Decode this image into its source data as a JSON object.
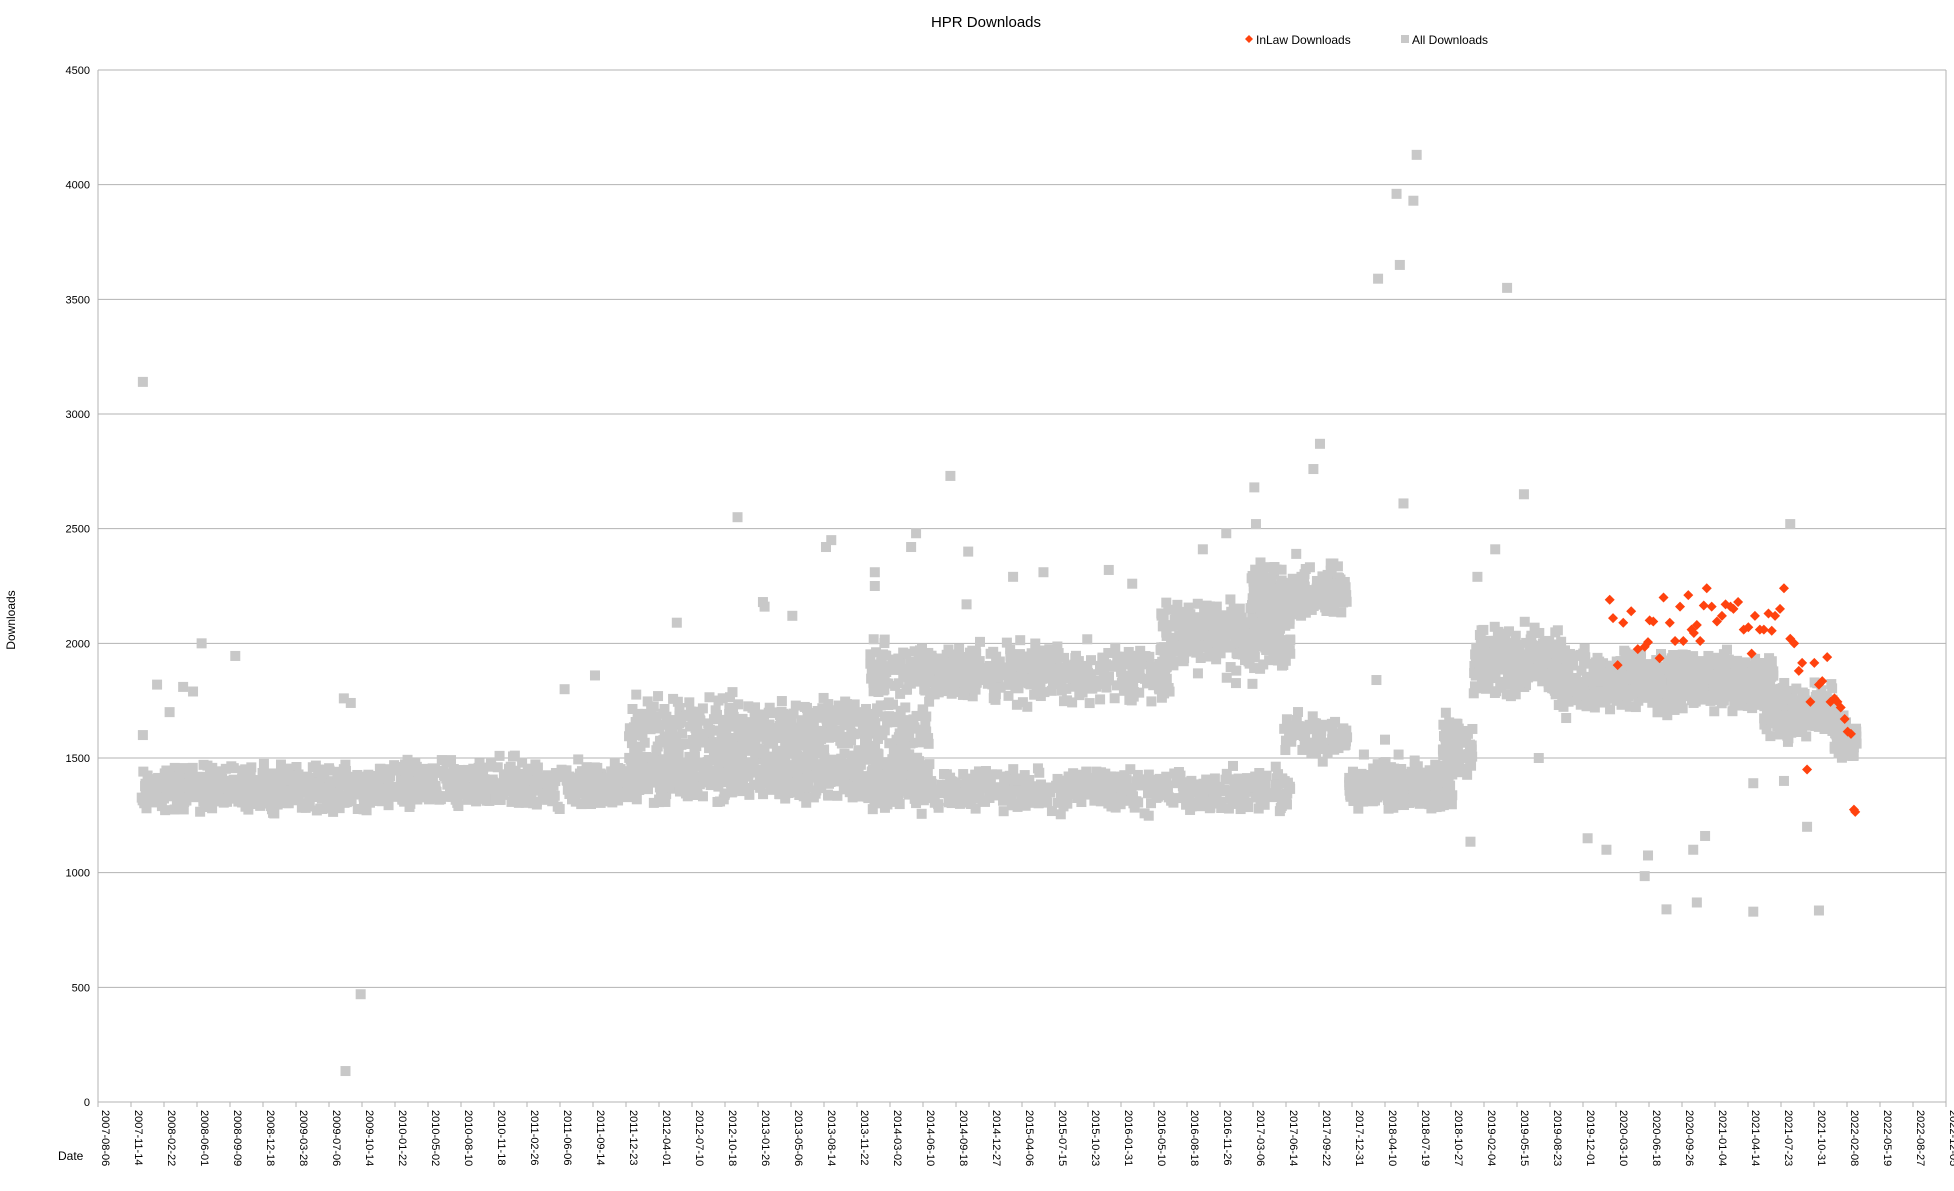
{
  "chart_data": {
    "type": "scatter",
    "title": "HPR Downloads",
    "xlabel": "Date",
    "ylabel": "Downloads",
    "xlim": [
      "2007-08-06",
      "2022-12-05"
    ],
    "ylim": [
      0,
      4500
    ],
    "y_ticks": [
      0,
      500,
      1000,
      1500,
      2000,
      2500,
      3000,
      3500,
      4000,
      4500
    ],
    "x_ticks": [
      "2007-08-06",
      "2007-11-14",
      "2008-02-22",
      "2008-06-01",
      "2008-09-09",
      "2008-12-18",
      "2009-03-28",
      "2009-07-06",
      "2009-10-14",
      "2010-01-22",
      "2010-05-02",
      "2010-08-10",
      "2010-11-18",
      "2011-02-26",
      "2011-06-06",
      "2011-09-14",
      "2011-12-23",
      "2012-04-01",
      "2012-07-10",
      "2012-10-18",
      "2013-01-26",
      "2013-05-06",
      "2013-08-14",
      "2013-11-22",
      "2014-03-02",
      "2014-06-10",
      "2014-09-18",
      "2014-12-27",
      "2015-04-06",
      "2015-07-15",
      "2015-10-23",
      "2016-01-31",
      "2016-05-10",
      "2016-08-18",
      "2016-11-26",
      "2017-03-06",
      "2017-06-14",
      "2017-09-22",
      "2017-12-31",
      "2018-04-10",
      "2018-07-19",
      "2018-10-27",
      "2019-02-04",
      "2019-05-15",
      "2019-08-23",
      "2019-12-01",
      "2020-03-10",
      "2020-06-18",
      "2020-09-26",
      "2021-01-04",
      "2021-04-14",
      "2021-07-23",
      "2021-10-31",
      "2022-02-08",
      "2022-05-19",
      "2022-08-27",
      "2022-12-05"
    ],
    "grid": "horizontal",
    "legend_position": "top-right",
    "series": [
      {
        "name": "InLaw Downloads",
        "color": "#ff420e",
        "marker": "diamond",
        "points": [
          [
            "2020-02-20",
            2190
          ],
          [
            "2020-03-01",
            2110
          ],
          [
            "2020-03-15",
            1905
          ],
          [
            "2020-04-01",
            2090
          ],
          [
            "2020-04-25",
            2140
          ],
          [
            "2020-05-15",
            1975
          ],
          [
            "2020-06-05",
            1985
          ],
          [
            "2020-06-15",
            2005
          ],
          [
            "2020-06-20",
            2100
          ],
          [
            "2020-07-01",
            2095
          ],
          [
            "2020-07-20",
            1935
          ],
          [
            "2020-08-01",
            2200
          ],
          [
            "2020-08-20",
            2090
          ],
          [
            "2020-09-05",
            2010
          ],
          [
            "2020-09-20",
            2160
          ],
          [
            "2020-09-30",
            2010
          ],
          [
            "2020-10-15",
            2210
          ],
          [
            "2020-10-25",
            2060
          ],
          [
            "2020-11-01",
            2045
          ],
          [
            "2020-11-10",
            2080
          ],
          [
            "2020-11-20",
            2010
          ],
          [
            "2020-12-01",
            2165
          ],
          [
            "2020-12-10",
            2240
          ],
          [
            "2020-12-25",
            2160
          ],
          [
            "2021-01-10",
            2095
          ],
          [
            "2021-01-25",
            2120
          ],
          [
            "2021-02-05",
            2170
          ],
          [
            "2021-02-20",
            2160
          ],
          [
            "2021-03-01",
            2150
          ],
          [
            "2021-03-15",
            2180
          ],
          [
            "2021-04-01",
            2060
          ],
          [
            "2021-04-15",
            2070
          ],
          [
            "2021-04-25",
            1955
          ],
          [
            "2021-05-05",
            2120
          ],
          [
            "2021-05-20",
            2060
          ],
          [
            "2021-06-01",
            2060
          ],
          [
            "2021-06-15",
            2130
          ],
          [
            "2021-06-25",
            2055
          ],
          [
            "2021-07-05",
            2120
          ],
          [
            "2021-07-20",
            2150
          ],
          [
            "2021-08-01",
            2240
          ],
          [
            "2021-08-20",
            2020
          ],
          [
            "2021-09-01",
            2000
          ],
          [
            "2021-09-15",
            1880
          ],
          [
            "2021-09-25",
            1915
          ],
          [
            "2021-10-10",
            1450
          ],
          [
            "2021-10-20",
            1745
          ],
          [
            "2021-11-01",
            1915
          ],
          [
            "2021-11-15",
            1820
          ],
          [
            "2021-11-25",
            1835
          ],
          [
            "2021-12-10",
            1940
          ],
          [
            "2021-12-20",
            1745
          ],
          [
            "2022-01-01",
            1760
          ],
          [
            "2022-01-10",
            1745
          ],
          [
            "2022-01-20",
            1720
          ],
          [
            "2022-02-01",
            1670
          ],
          [
            "2022-02-10",
            1615
          ],
          [
            "2022-02-20",
            1605
          ],
          [
            "2022-03-01",
            1275
          ],
          [
            "2022-03-05",
            1265
          ]
        ]
      },
      {
        "name": "All Downloads",
        "color": "#c8c8c8",
        "marker": "square",
        "points": [
          [
            "2007-12-20",
            3140
          ],
          [
            "2007-12-20",
            1600
          ],
          [
            "2008-02-01",
            1820
          ],
          [
            "2008-03-10",
            1700
          ],
          [
            "2008-04-20",
            1810
          ],
          [
            "2008-05-20",
            1790
          ],
          [
            "2008-06-15",
            2000
          ],
          [
            "2008-09-25",
            1945
          ],
          [
            "2009-09-10",
            1740
          ],
          [
            "2009-08-20",
            1760
          ],
          [
            "2009-10-10",
            470
          ],
          [
            "2009-08-25",
            135
          ],
          [
            "2011-06-20",
            1800
          ],
          [
            "2011-09-20",
            1860
          ],
          [
            "2012-05-25",
            2090
          ],
          [
            "2012-11-25",
            2550
          ],
          [
            "2013-02-15",
            2160
          ],
          [
            "2013-02-10",
            2180
          ],
          [
            "2013-05-10",
            2120
          ],
          [
            "2013-08-20",
            2420
          ],
          [
            "2013-09-05",
            2450
          ],
          [
            "2014-01-15",
            2310
          ],
          [
            "2014-01-15",
            2250
          ],
          [
            "2014-05-20",
            2480
          ],
          [
            "2014-05-05",
            2420
          ],
          [
            "2014-09-01",
            2730
          ],
          [
            "2014-10-25",
            2400
          ],
          [
            "2014-10-20",
            2170
          ],
          [
            "2015-03-10",
            2290
          ],
          [
            "2015-06-10",
            2310
          ],
          [
            "2015-12-25",
            2320
          ],
          [
            "2016-03-05",
            2260
          ],
          [
            "2016-08-01",
            2120
          ],
          [
            "2016-10-05",
            2410
          ],
          [
            "2016-12-15",
            2480
          ],
          [
            "2017-03-10",
            2680
          ],
          [
            "2017-03-15",
            2520
          ],
          [
            "2017-07-15",
            2390
          ],
          [
            "2017-09-05",
            2760
          ],
          [
            "2017-09-25",
            2870
          ],
          [
            "2018-03-20",
            3590
          ],
          [
            "2018-05-15",
            3960
          ],
          [
            "2018-05-25",
            3650
          ],
          [
            "2018-06-05",
            2610
          ],
          [
            "2018-07-05",
            3930
          ],
          [
            "2018-07-15",
            4130
          ],
          [
            "2019-04-15",
            3550
          ],
          [
            "2019-06-05",
            2650
          ],
          [
            "2019-03-10",
            2410
          ],
          [
            "2018-12-25",
            1135
          ],
          [
            "2019-07-20",
            1500
          ],
          [
            "2019-12-15",
            1150
          ],
          [
            "2020-02-10",
            1100
          ],
          [
            "2020-06-05",
            985
          ],
          [
            "2020-06-15",
            1075
          ],
          [
            "2020-08-10",
            840
          ],
          [
            "2020-10-30",
            1100
          ],
          [
            "2020-11-10",
            870
          ],
          [
            "2020-12-05",
            1160
          ],
          [
            "2021-04-30",
            830
          ],
          [
            "2021-04-30",
            1390
          ],
          [
            "2021-08-20",
            2520
          ],
          [
            "2021-08-01",
            1400
          ],
          [
            "2021-10-10",
            1200
          ],
          [
            "2021-11-15",
            835
          ],
          [
            "2018-04-10",
            1580
          ],
          [
            "2018-03-15",
            1840
          ],
          [
            "2019-01-15",
            2290
          ]
        ],
        "bands": [
          {
            "from": "2007-12-15",
            "to": "2009-12-31",
            "center": 1370,
            "spread": 130,
            "density": 5
          },
          {
            "from": "2010-01-01",
            "to": "2011-12-31",
            "center": 1380,
            "spread": 150,
            "density": 4
          },
          {
            "from": "2012-01-01",
            "to": "2014-06-30",
            "center": 1430,
            "spread": 170,
            "density": 5
          },
          {
            "from": "2012-01-01",
            "to": "2014-06-30",
            "center": 1640,
            "spread": 170,
            "density": 3
          },
          {
            "from": "2014-01-01",
            "to": "2017-06-30",
            "center": 1360,
            "spread": 130,
            "density": 3
          },
          {
            "from": "2014-01-01",
            "to": "2016-06-30",
            "center": 1870,
            "spread": 170,
            "density": 4
          },
          {
            "from": "2016-06-01",
            "to": "2017-06-30",
            "center": 2030,
            "spread": 220,
            "density": 5
          },
          {
            "from": "2017-03-01",
            "to": "2017-12-15",
            "center": 2220,
            "spread": 160,
            "density": 6
          },
          {
            "from": "2017-06-01",
            "to": "2017-12-20",
            "center": 1600,
            "spread": 140,
            "density": 3
          },
          {
            "from": "2017-12-20",
            "to": "2018-10-31",
            "center": 1380,
            "spread": 140,
            "density": 7
          },
          {
            "from": "2018-10-01",
            "to": "2018-12-31",
            "center": 1560,
            "spread": 200,
            "density": 5
          },
          {
            "from": "2019-01-01",
            "to": "2019-09-30",
            "center": 1930,
            "spread": 200,
            "density": 6
          },
          {
            "from": "2019-09-01",
            "to": "2019-12-31",
            "center": 1850,
            "spread": 220,
            "density": 5
          },
          {
            "from": "2020-01-01",
            "to": "2021-06-30",
            "center": 1830,
            "spread": 160,
            "density": 9
          },
          {
            "from": "2021-06-01",
            "to": "2021-12-31",
            "center": 1710,
            "spread": 150,
            "density": 7
          },
          {
            "from": "2022-01-01",
            "to": "2022-03-10",
            "center": 1580,
            "spread": 120,
            "density": 6
          }
        ]
      }
    ]
  }
}
